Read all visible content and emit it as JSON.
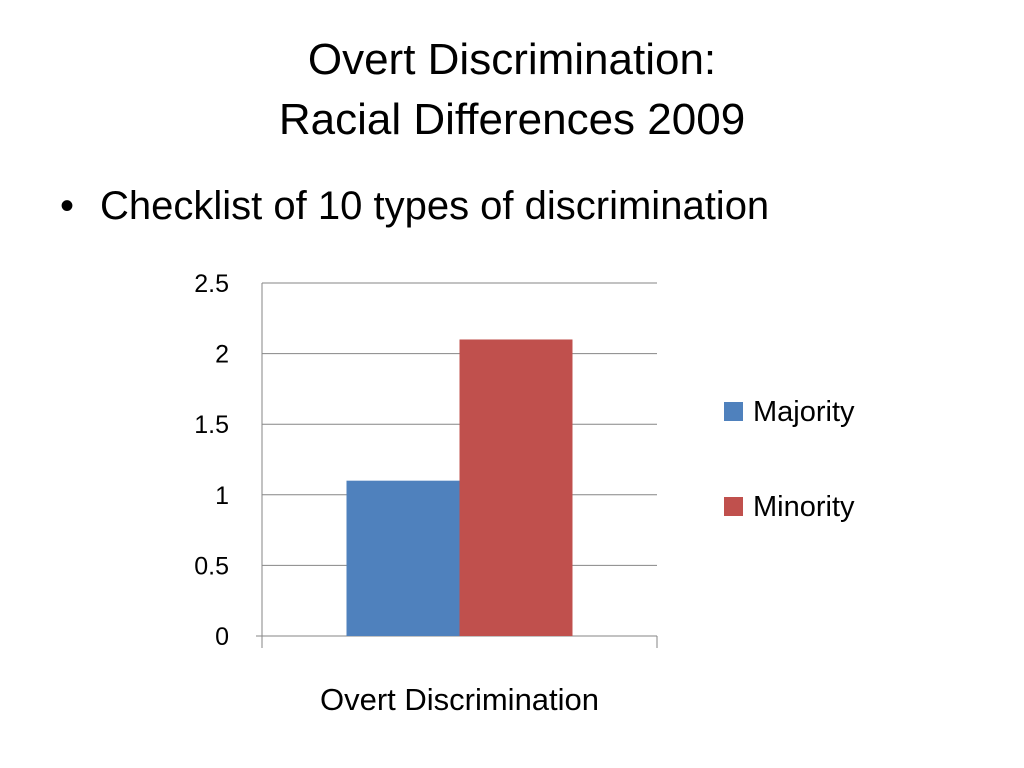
{
  "slide": {
    "title_line1": "Overt Discrimination:",
    "title_line2": "Racial Differences 2009",
    "bullets": [
      "Checklist of 10 types of discrimination"
    ]
  },
  "chart_data": {
    "type": "bar",
    "categories": [
      "Overt Discrimination"
    ],
    "series": [
      {
        "name": "Majority",
        "values": [
          1.1
        ],
        "color": "#4F81BD"
      },
      {
        "name": "Minority",
        "values": [
          2.1
        ],
        "color": "#C0504D"
      }
    ],
    "xlabel": "",
    "ylabel": "",
    "ylim": [
      0,
      2.5
    ],
    "yticks": [
      0,
      0.5,
      1,
      1.5,
      2,
      2.5
    ],
    "ytick_labels": [
      "0",
      "0.5",
      "1",
      "1.5",
      "2",
      "2.5"
    ],
    "grid": true,
    "legend": "right"
  }
}
